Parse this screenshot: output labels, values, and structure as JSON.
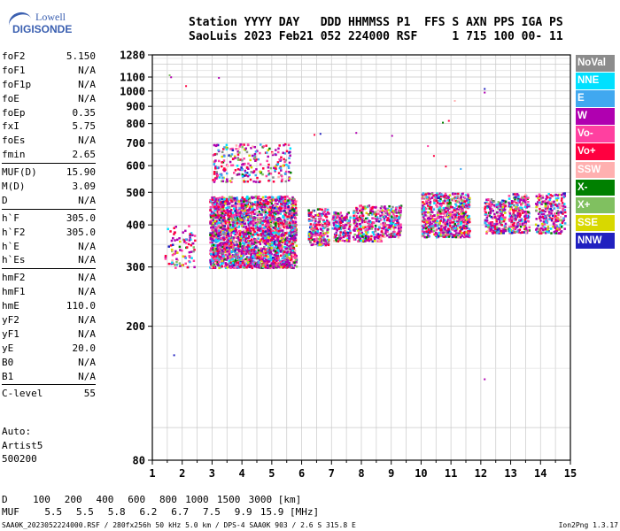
{
  "logo": {
    "line1": "Lowell",
    "line2": "DIGISONDE"
  },
  "header": {
    "line1": "Station YYYY DAY   DDD HHMMSS P1  FFS S AXN PPS IGA PS",
    "line2": "SaoLuis 2023 Feb21 052 224000 RSF     1 715 100 00- 11"
  },
  "params": {
    "group1": [
      {
        "label": "foF2",
        "value": "5.150"
      },
      {
        "label": "foF1",
        "value": "N/A"
      },
      {
        "label": "foF1p",
        "value": "N/A"
      },
      {
        "label": "foE",
        "value": "N/A"
      },
      {
        "label": "foEp",
        "value": "0.35"
      },
      {
        "label": "fxI",
        "value": "5.75"
      },
      {
        "label": "foEs",
        "value": "N/A"
      },
      {
        "label": "fmin",
        "value": "2.65"
      }
    ],
    "group2": [
      {
        "label": "MUF(D)",
        "value": "15.90"
      },
      {
        "label": "M(D)",
        "value": "3.09"
      },
      {
        "label": "D",
        "value": "N/A"
      }
    ],
    "group3": [
      {
        "label": "h`F",
        "value": "305.0"
      },
      {
        "label": "h`F2",
        "value": "305.0"
      },
      {
        "label": "h`E",
        "value": "N/A"
      },
      {
        "label": "h`Es",
        "value": "N/A"
      }
    ],
    "group4": [
      {
        "label": "hmF2",
        "value": "N/A"
      },
      {
        "label": "hmF1",
        "value": "N/A"
      },
      {
        "label": "hmE",
        "value": "110.0"
      },
      {
        "label": "yF2",
        "value": "N/A"
      },
      {
        "label": "yF1",
        "value": "N/A"
      },
      {
        "label": "yE",
        "value": "20.0"
      },
      {
        "label": "B0",
        "value": "N/A"
      },
      {
        "label": "B1",
        "value": "N/A"
      }
    ],
    "group5": [
      {
        "label": "C-level",
        "value": "55"
      }
    ]
  },
  "auto": {
    "line1": "Auto:",
    "line2": "Artist5",
    "line3": "500200"
  },
  "legend": [
    {
      "label": "NoVal",
      "color": "#8c8c8c"
    },
    {
      "label": "NNE",
      "color": "#00e0ff"
    },
    {
      "label": "E",
      "color": "#40a8f0"
    },
    {
      "label": "W",
      "color": "#b000b0"
    },
    {
      "label": "Vo-",
      "color": "#ff40a0"
    },
    {
      "label": "Vo+",
      "color": "#ff0040"
    },
    {
      "label": "SSW",
      "color": "#ffb0b0"
    },
    {
      "label": "X-",
      "color": "#008000"
    },
    {
      "label": "X+",
      "color": "#80c060"
    },
    {
      "label": "SSE",
      "color": "#d8d800"
    },
    {
      "label": "NNW",
      "color": "#2020c0"
    }
  ],
  "bottom": {
    "d_label": "D",
    "d_values": [
      "100",
      "200",
      "400",
      "600",
      "800",
      "1000",
      "1500",
      "3000"
    ],
    "d_unit": "[km]",
    "muf_label": "MUF",
    "muf_values": [
      "5.5",
      "5.5",
      "5.8",
      "6.2",
      "6.7",
      "7.5",
      "9.9",
      "15.9"
    ],
    "muf_unit": "[MHz]"
  },
  "footer": {
    "left": "SAA0K_2023052224000.RSF / 280fx256h 50 kHz 5.0 km / DPS-4 SAA0K 903 / 2.6 S 315.8 E",
    "right": "Ion2Png 1.3.17"
  },
  "chart_data": {
    "type": "scatter",
    "x_ticks": [
      1,
      2,
      3,
      4,
      5,
      6,
      7,
      8,
      9,
      10,
      11,
      12,
      13,
      14,
      15
    ],
    "y_ticks": [
      80,
      200,
      300,
      400,
      500,
      600,
      700,
      800,
      900,
      1000,
      1100,
      1280
    ],
    "xlim": [
      1,
      15
    ],
    "ylim": [
      80,
      1280
    ],
    "y_scale": "log",
    "grid": true,
    "clusters": [
      {
        "x": [
          1.4,
          2.4
        ],
        "y": [
          300,
          400
        ]
      },
      {
        "x": [
          2.9,
          5.8
        ],
        "y": [
          300,
          490
        ]
      },
      {
        "x": [
          3.0,
          5.6
        ],
        "y": [
          540,
          700
        ]
      },
      {
        "x": [
          6.2,
          6.9
        ],
        "y": [
          350,
          450
        ]
      },
      {
        "x": [
          7.0,
          7.6
        ],
        "y": [
          360,
          440
        ]
      },
      {
        "x": [
          7.7,
          8.7
        ],
        "y": [
          360,
          460
        ]
      },
      {
        "x": [
          8.7,
          9.3
        ],
        "y": [
          370,
          460
        ]
      },
      {
        "x": [
          10.0,
          11.6
        ],
        "y": [
          370,
          500
        ]
      },
      {
        "x": [
          12.1,
          12.8
        ],
        "y": [
          380,
          480
        ]
      },
      {
        "x": [
          12.9,
          13.6
        ],
        "y": [
          380,
          500
        ]
      },
      {
        "x": [
          13.8,
          14.8
        ],
        "y": [
          380,
          500
        ]
      }
    ],
    "isolated_points": [
      {
        "x": 1.55,
        "y": 1120
      },
      {
        "x": 1.6,
        "y": 1105
      },
      {
        "x": 3.2,
        "y": 1100
      },
      {
        "x": 2.1,
        "y": 1040
      },
      {
        "x": 12.1,
        "y": 1020
      },
      {
        "x": 12.1,
        "y": 995
      },
      {
        "x": 11.1,
        "y": 940
      },
      {
        "x": 10.7,
        "y": 810
      },
      {
        "x": 10.9,
        "y": 820
      },
      {
        "x": 6.4,
        "y": 745
      },
      {
        "x": 6.6,
        "y": 750
      },
      {
        "x": 7.8,
        "y": 755
      },
      {
        "x": 9.0,
        "y": 740
      },
      {
        "x": 10.2,
        "y": 690
      },
      {
        "x": 10.4,
        "y": 645
      },
      {
        "x": 10.8,
        "y": 600
      },
      {
        "x": 11.3,
        "y": 590
      },
      {
        "x": 1.7,
        "y": 165
      },
      {
        "x": 12.1,
        "y": 140
      }
    ]
  }
}
